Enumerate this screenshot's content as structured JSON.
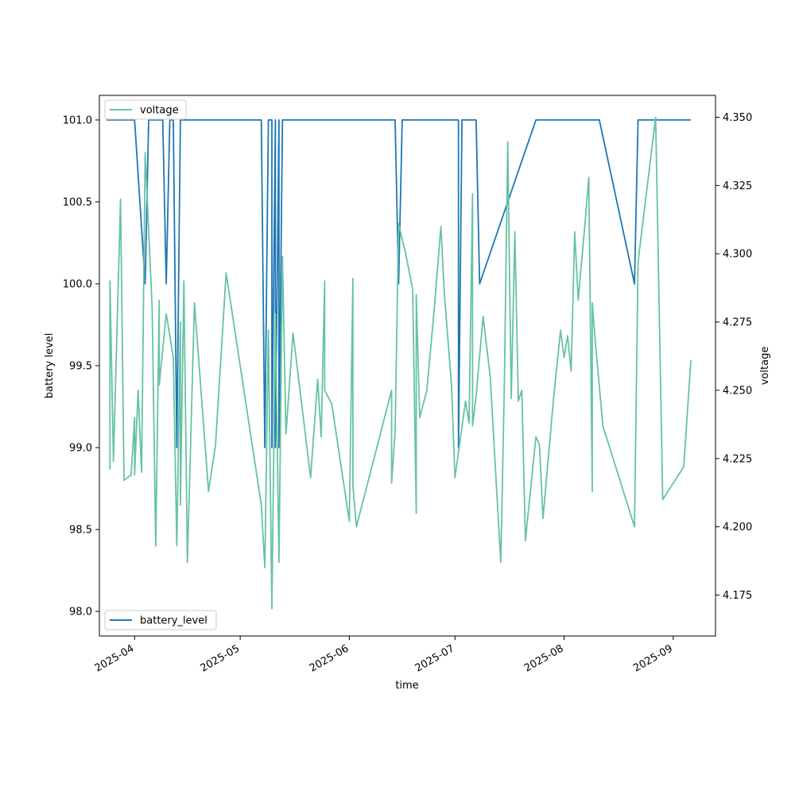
{
  "chart_data": {
    "type": "line",
    "xlabel": "time",
    "ylabel_left": "battery level",
    "ylabel_right": "voltage",
    "xlim": [
      "2025-03-22",
      "2025-09-13"
    ],
    "ylim_left": [
      97.85,
      101.15
    ],
    "ylim_right": [
      4.16,
      4.358
    ],
    "x_ticks": [
      "2025-04",
      "2025-05",
      "2025-06",
      "2025-07",
      "2025-08",
      "2025-09"
    ],
    "y_ticks_left": [
      "98.0",
      "98.5",
      "99.0",
      "99.5",
      "100.0",
      "100.5",
      "101.0"
    ],
    "y_ticks_right": [
      "4.175",
      "4.200",
      "4.225",
      "4.250",
      "4.275",
      "4.300",
      "4.325",
      "4.350"
    ],
    "grid": false,
    "series": [
      {
        "name": "battery_level",
        "axis": "left",
        "color": "#1f77b4",
        "legend_position": "lower-left",
        "points": [
          [
            "2025-03-24",
            101
          ],
          [
            "2025-04-01",
            101
          ],
          [
            "2025-04-04",
            100
          ],
          [
            "2025-04-05",
            101
          ],
          [
            "2025-04-08",
            101
          ],
          [
            "2025-04-09",
            101
          ],
          [
            "2025-04-10",
            100
          ],
          [
            "2025-04-11",
            101
          ],
          [
            "2025-04-12",
            101
          ],
          [
            "2025-04-13",
            99
          ],
          [
            "2025-04-14",
            101
          ],
          [
            "2025-04-15",
            101
          ],
          [
            "2025-04-16",
            101
          ],
          [
            "2025-05-07",
            101
          ],
          [
            "2025-05-08",
            99
          ],
          [
            "2025-05-09",
            101
          ],
          [
            "2025-05-10",
            101
          ],
          [
            "2025-05-10",
            99
          ],
          [
            "2025-05-11",
            101
          ],
          [
            "2025-05-11",
            99
          ],
          [
            "2025-05-12",
            101
          ],
          [
            "2025-05-12",
            99
          ],
          [
            "2025-05-13",
            101
          ],
          [
            "2025-06-14",
            101
          ],
          [
            "2025-06-15",
            100
          ],
          [
            "2025-06-16",
            101
          ],
          [
            "2025-07-02",
            101
          ],
          [
            "2025-07-02",
            99
          ],
          [
            "2025-07-03",
            101
          ],
          [
            "2025-07-07",
            101
          ],
          [
            "2025-07-08",
            100
          ],
          [
            "2025-07-24",
            101
          ],
          [
            "2025-08-11",
            101
          ],
          [
            "2025-08-21",
            100
          ],
          [
            "2025-08-22",
            101
          ],
          [
            "2025-09-06",
            101
          ]
        ]
      },
      {
        "name": "voltage",
        "axis": "right",
        "color": "#66c2a5",
        "legend_position": "upper-left",
        "points": [
          [
            "2025-03-25",
            4.221
          ],
          [
            "2025-03-25",
            4.29
          ],
          [
            "2025-03-26",
            4.224
          ],
          [
            "2025-03-28",
            4.32
          ],
          [
            "2025-03-29",
            4.217
          ],
          [
            "2025-03-31",
            4.219
          ],
          [
            "2025-04-01",
            4.24
          ],
          [
            "2025-04-01",
            4.219
          ],
          [
            "2025-04-02",
            4.25
          ],
          [
            "2025-04-03",
            4.22
          ],
          [
            "2025-04-04",
            4.337
          ],
          [
            "2025-04-06",
            4.28
          ],
          [
            "2025-04-07",
            4.193
          ],
          [
            "2025-04-08",
            4.283
          ],
          [
            "2025-04-08",
            4.252
          ],
          [
            "2025-04-10",
            4.278
          ],
          [
            "2025-04-12",
            4.262
          ],
          [
            "2025-04-13",
            4.193
          ],
          [
            "2025-04-14",
            4.275
          ],
          [
            "2025-04-14",
            4.208
          ],
          [
            "2025-04-15",
            4.29
          ],
          [
            "2025-04-16",
            4.187
          ],
          [
            "2025-04-18",
            4.282
          ],
          [
            "2025-04-22",
            4.213
          ],
          [
            "2025-04-24",
            4.23
          ],
          [
            "2025-04-26",
            4.272
          ],
          [
            "2025-04-27",
            4.293
          ],
          [
            "2025-05-07",
            4.208
          ],
          [
            "2025-05-08",
            4.185
          ],
          [
            "2025-05-09",
            4.272
          ],
          [
            "2025-05-10",
            4.17
          ],
          [
            "2025-05-11",
            4.278
          ],
          [
            "2025-05-12",
            4.187
          ],
          [
            "2025-05-13",
            4.299
          ],
          [
            "2025-05-14",
            4.234
          ],
          [
            "2025-05-16",
            4.271
          ],
          [
            "2025-05-21",
            4.218
          ],
          [
            "2025-05-23",
            4.254
          ],
          [
            "2025-05-24",
            4.233
          ],
          [
            "2025-05-25",
            4.29
          ],
          [
            "2025-05-25",
            4.25
          ],
          [
            "2025-05-27",
            4.245
          ],
          [
            "2025-06-01",
            4.202
          ],
          [
            "2025-06-02",
            4.291
          ],
          [
            "2025-06-02",
            4.215
          ],
          [
            "2025-06-03",
            4.2
          ],
          [
            "2025-06-13",
            4.25
          ],
          [
            "2025-06-13",
            4.216
          ],
          [
            "2025-06-14",
            4.235
          ],
          [
            "2025-06-15",
            4.311
          ],
          [
            "2025-06-17",
            4.3
          ],
          [
            "2025-06-19",
            4.287
          ],
          [
            "2025-06-20",
            4.205
          ],
          [
            "2025-06-20",
            4.285
          ],
          [
            "2025-06-21",
            4.24
          ],
          [
            "2025-06-23",
            4.25
          ],
          [
            "2025-06-25",
            4.278
          ],
          [
            "2025-06-27",
            4.31
          ],
          [
            "2025-06-28",
            4.285
          ],
          [
            "2025-06-30",
            4.252
          ],
          [
            "2025-07-01",
            4.218
          ],
          [
            "2025-07-04",
            4.246
          ],
          [
            "2025-07-05",
            4.238
          ],
          [
            "2025-07-06",
            4.322
          ],
          [
            "2025-07-06",
            4.237
          ],
          [
            "2025-07-07",
            4.248
          ],
          [
            "2025-07-09",
            4.277
          ],
          [
            "2025-07-10",
            4.266
          ],
          [
            "2025-07-11",
            4.255
          ],
          [
            "2025-07-14",
            4.187
          ],
          [
            "2025-07-15",
            4.25
          ],
          [
            "2025-07-16",
            4.341
          ],
          [
            "2025-07-17",
            4.247
          ],
          [
            "2025-07-18",
            4.308
          ],
          [
            "2025-07-19",
            4.246
          ],
          [
            "2025-07-20",
            4.25
          ],
          [
            "2025-07-21",
            4.195
          ],
          [
            "2025-07-24",
            4.233
          ],
          [
            "2025-07-25",
            4.23
          ],
          [
            "2025-07-26",
            4.203
          ],
          [
            "2025-07-29",
            4.247
          ],
          [
            "2025-07-31",
            4.272
          ],
          [
            "2025-08-01",
            4.262
          ],
          [
            "2025-08-02",
            4.27
          ],
          [
            "2025-08-03",
            4.257
          ],
          [
            "2025-08-04",
            4.308
          ],
          [
            "2025-08-05",
            4.283
          ],
          [
            "2025-08-07",
            4.312
          ],
          [
            "2025-08-08",
            4.328
          ],
          [
            "2025-08-09",
            4.213
          ],
          [
            "2025-08-09",
            4.282
          ],
          [
            "2025-08-10",
            4.266
          ],
          [
            "2025-08-12",
            4.237
          ],
          [
            "2025-08-21",
            4.2
          ],
          [
            "2025-08-22",
            4.297
          ],
          [
            "2025-08-27",
            4.35
          ],
          [
            "2025-08-29",
            4.21
          ],
          [
            "2025-09-04",
            4.222
          ],
          [
            "2025-09-06",
            4.261
          ]
        ]
      }
    ]
  }
}
